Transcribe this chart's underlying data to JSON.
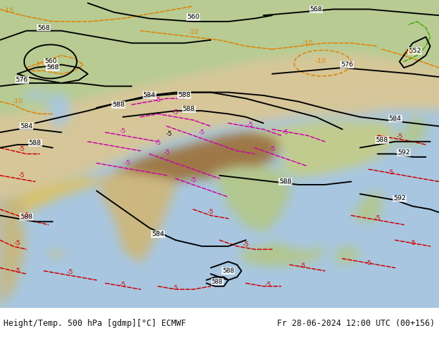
{
  "title_left": "Height/Temp. 500 hPa [gdmp][°C] ECMWF",
  "title_right": "Fr 28-06-2024 12:00 UTC (00+156)",
  "figure_width": 6.34,
  "figure_height": 4.9,
  "dpi": 100,
  "footer_fontsize": 8.5,
  "footer_color": "#111111",
  "footer_bg": "#ffffff",
  "map_bg_ocean": "#a8c8e0",
  "map_bg_land_green": "#b8cc90",
  "map_bg_land_tan": "#c8b878",
  "map_bg_tibet": "#a07840",
  "height_color": "#000000",
  "temp_orange": "#e08000",
  "temp_red": "#cc0000",
  "temp_magenta": "#cc00aa"
}
